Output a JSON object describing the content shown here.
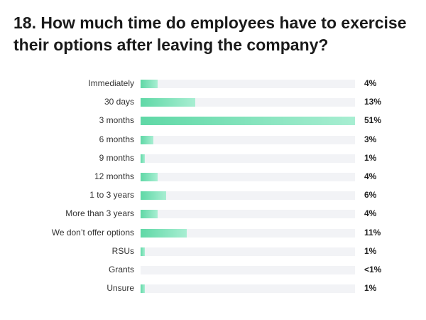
{
  "title": "18. How much time do employees have to exercise their options after leaving the company?",
  "chart_data": {
    "type": "bar",
    "orientation": "horizontal",
    "title": "18. How much time do employees have to exercise their options after leaving the company?",
    "xlabel": "",
    "ylabel": "",
    "xlim": [
      0,
      51
    ],
    "categories": [
      "Immediately",
      "30 days",
      "3 months",
      "6 months",
      "9 months",
      "12 months",
      "1 to 3 years",
      "More than 3 years",
      "We don’t offer options",
      "RSUs",
      "Grants",
      "Unsure"
    ],
    "values": [
      4,
      13,
      51,
      3,
      1,
      4,
      6,
      4,
      11,
      1,
      0.4,
      1
    ],
    "value_labels": [
      "4%",
      "13%",
      "51%",
      "3%",
      "1%",
      "4%",
      "6%",
      "4%",
      "11%",
      "1%",
      "<1%",
      "1%"
    ],
    "colors": {
      "bar_start": "#5fd8a6",
      "bar_end": "#a8eed2",
      "track": "#f2f3f6"
    }
  }
}
